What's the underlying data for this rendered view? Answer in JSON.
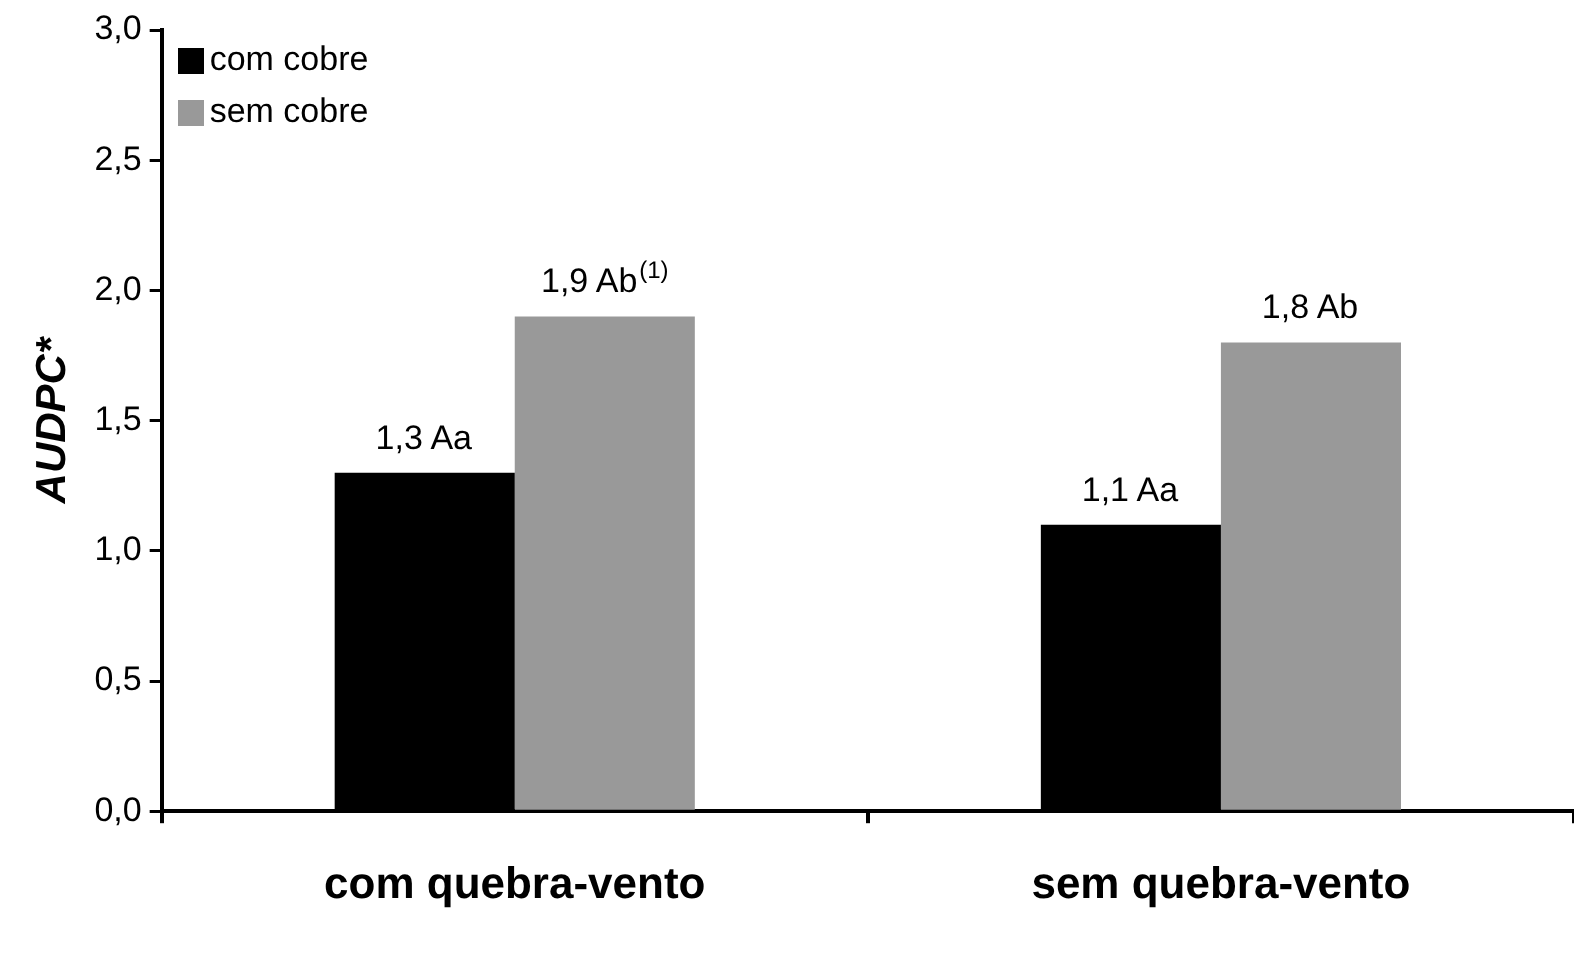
{
  "chart_data": {
    "type": "bar",
    "ylabel": "AUDPC*",
    "categories": [
      "com quebra-vento",
      "sem quebra-vento"
    ],
    "series": [
      {
        "name": "com cobre",
        "color": "#000000",
        "values": [
          1.3,
          1.1
        ],
        "value_labels": [
          "1,3 Aa",
          "1,1 Aa"
        ]
      },
      {
        "name": "sem cobre",
        "color": "#999999",
        "values": [
          1.9,
          1.8
        ],
        "value_labels": [
          "1,9 Ab$^{(1)}$",
          "1,8 Ab"
        ]
      }
    ],
    "ylim": [
      0,
      3
    ],
    "yticks": [
      {
        "value": 0,
        "label": "0,0"
      },
      {
        "value": 0.5,
        "label": "0,5"
      },
      {
        "value": 1,
        "label": "1,0"
      },
      {
        "value": 1.5,
        "label": "1,5"
      },
      {
        "value": 2,
        "label": "2,0"
      },
      {
        "value": 2.5,
        "label": "2,5"
      },
      {
        "value": 3,
        "label": "3,0"
      }
    ],
    "grid": false,
    "legend": "top left"
  }
}
